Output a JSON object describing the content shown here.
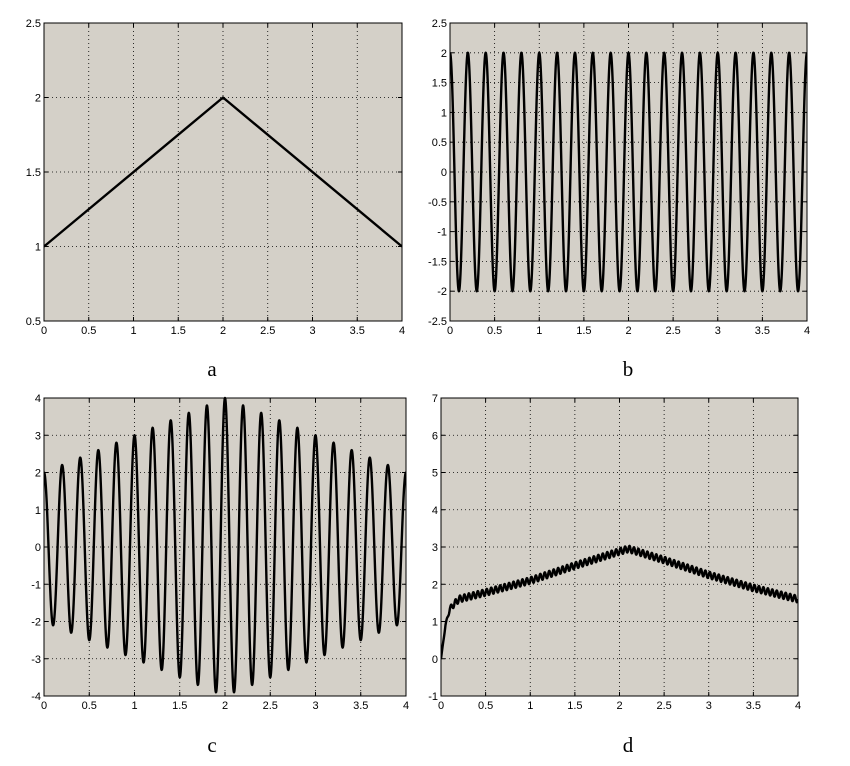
{
  "chart_data": [
    {
      "id": "a",
      "type": "line",
      "caption": "a",
      "xlim": [
        0,
        4
      ],
      "ylim": [
        0.5,
        2.5
      ],
      "xticks": [
        "0",
        "0.5",
        "1",
        "1.5",
        "2",
        "2.5",
        "3",
        "3.5",
        "4"
      ],
      "yticks": [
        "0.5",
        "1",
        "1.5",
        "2",
        "2.5"
      ],
      "grid": true,
      "signal": "triangle",
      "x": [
        0,
        2,
        4
      ],
      "y": [
        1,
        2,
        1
      ]
    },
    {
      "id": "b",
      "type": "line",
      "caption": "b",
      "xlim": [
        0,
        4
      ],
      "ylim": [
        -2.5,
        2.5
      ],
      "xticks": [
        "0",
        "0.5",
        "1",
        "1.5",
        "2",
        "2.5",
        "3",
        "3.5",
        "4"
      ],
      "yticks": [
        "-2.5",
        "-2",
        "-1.5",
        "-1",
        "-0.5",
        "0",
        "0.5",
        "1",
        "1.5",
        "2",
        "2.5"
      ],
      "grid": true,
      "signal": "sine",
      "amplitude": 2,
      "cycles": 20,
      "phase_start": "max"
    },
    {
      "id": "c",
      "type": "line",
      "caption": "c",
      "xlim": [
        0,
        4
      ],
      "ylim": [
        -4,
        4
      ],
      "xticks": [
        "0",
        "0.5",
        "1",
        "1.5",
        "2",
        "2.5",
        "3",
        "3.5",
        "4"
      ],
      "yticks": [
        "-4",
        "-3",
        "-2",
        "-1",
        "0",
        "1",
        "2",
        "3",
        "4"
      ],
      "grid": true,
      "signal": "amplitude-modulated sine",
      "envelope_x": [
        0,
        2,
        4
      ],
      "envelope_y": [
        2,
        4,
        2
      ],
      "cycles": 20
    },
    {
      "id": "d",
      "type": "line",
      "caption": "d",
      "xlim": [
        0,
        4
      ],
      "ylim": [
        -1,
        7
      ],
      "xticks": [
        "0",
        "0.5",
        "1",
        "1.5",
        "2",
        "2.5",
        "3",
        "3.5",
        "4"
      ],
      "yticks": [
        "-1",
        "0",
        "1",
        "2",
        "3",
        "4",
        "5",
        "6",
        "7"
      ],
      "grid": true,
      "signal": "rising response with small ripple",
      "trend_x": [
        0,
        0.05,
        0.1,
        0.2,
        0.5,
        1,
        1.5,
        2,
        2.1,
        2.5,
        3,
        3.5,
        4
      ],
      "trend_y": [
        0,
        0.9,
        1.35,
        1.6,
        1.78,
        2.1,
        2.5,
        2.88,
        2.95,
        2.65,
        2.25,
        1.9,
        1.6
      ],
      "ripple_amplitude": 0.09,
      "ripple_cycles": 80
    }
  ]
}
